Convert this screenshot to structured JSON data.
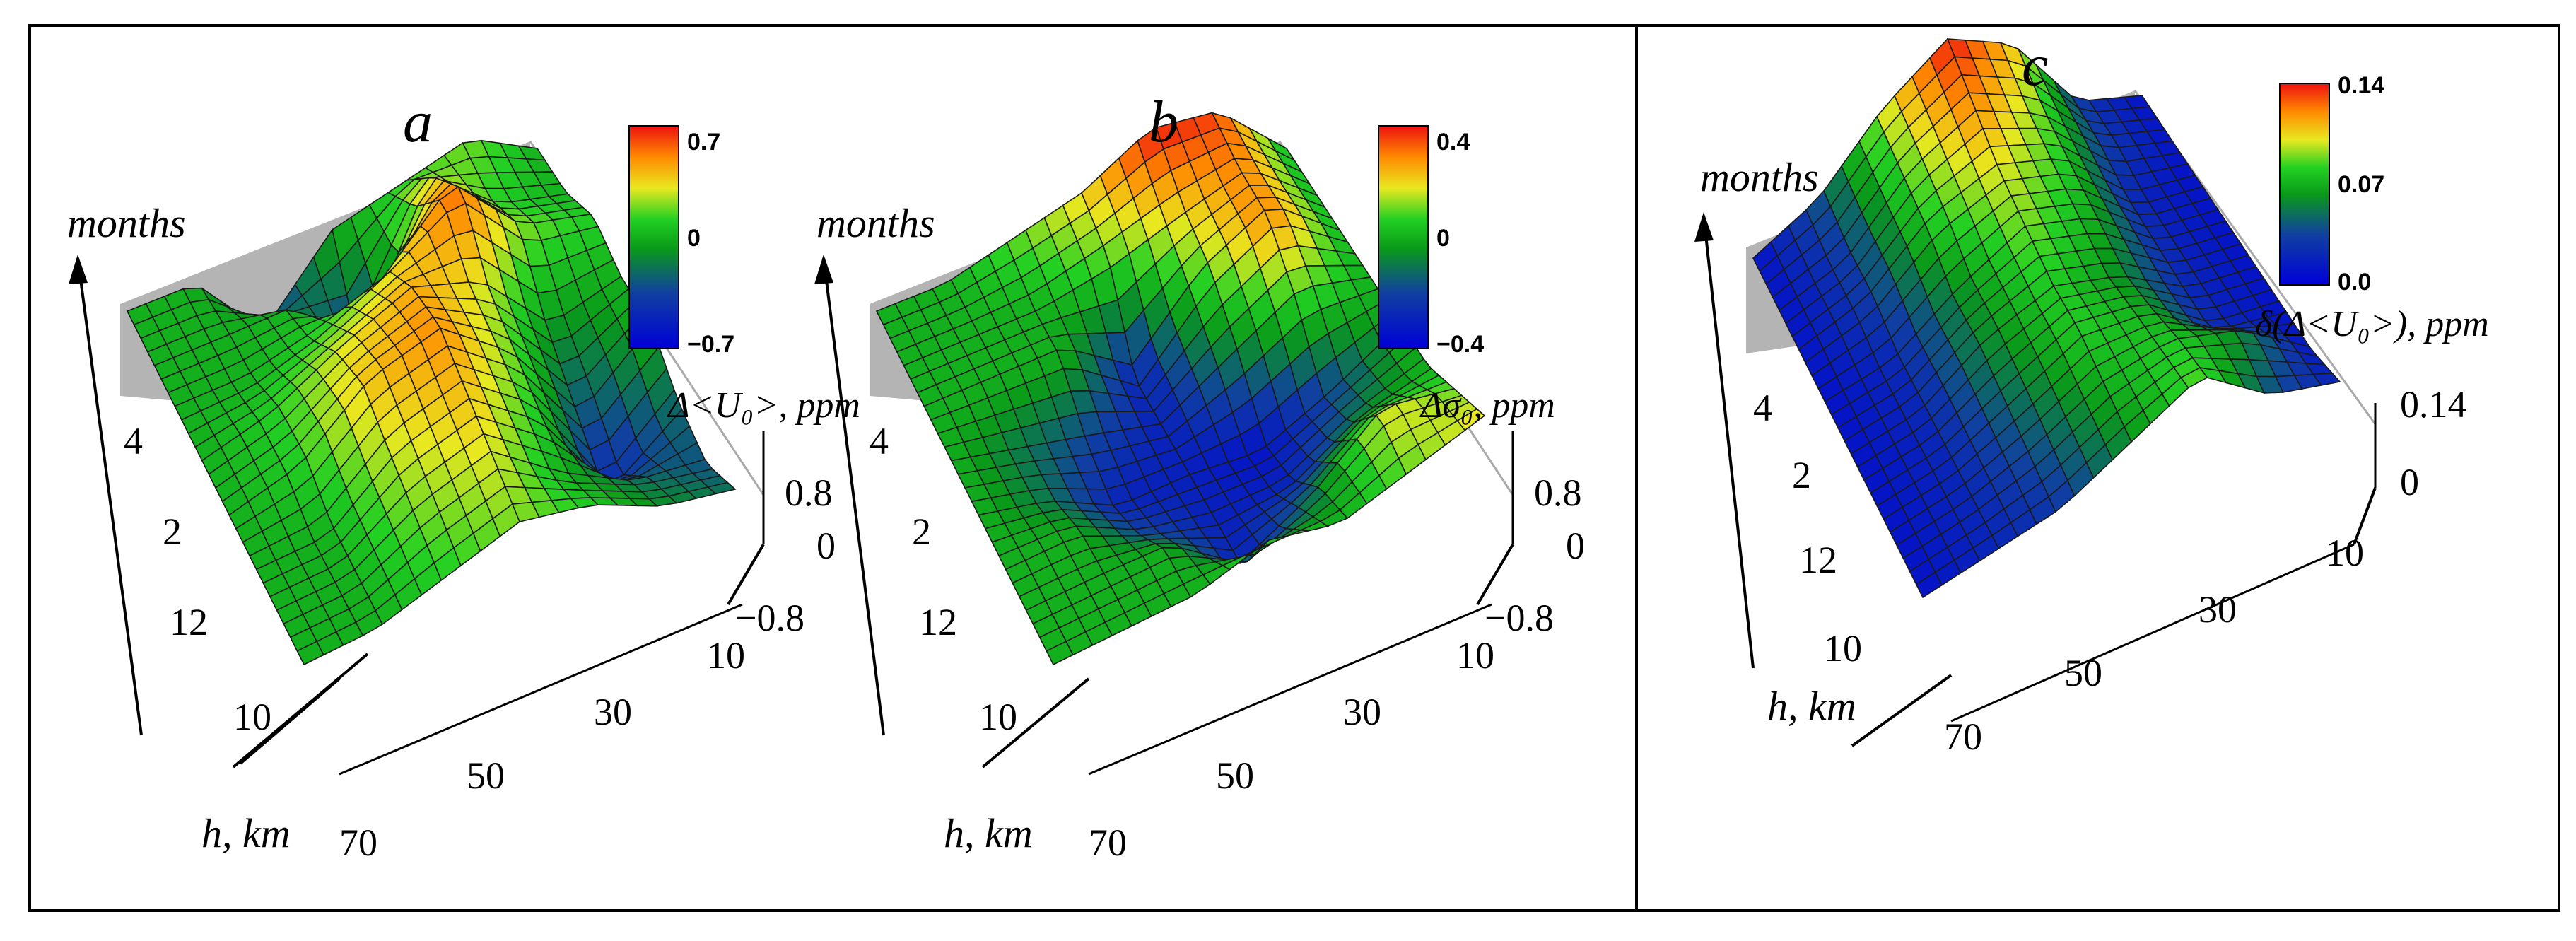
{
  "chart_data": [
    {
      "type": "surface",
      "panel": "a",
      "title": "a",
      "xlabel": "h, km",
      "ylabel": "months",
      "zlabel": "Δ<U₀>, ppm",
      "x_ticks": [
        "10",
        "30",
        "50",
        "70"
      ],
      "y_ticks": [
        "4",
        "2",
        "12",
        "10"
      ],
      "z_ticks": [
        "0.8",
        "0",
        "−0.8"
      ],
      "zlim": [
        -0.8,
        0.8
      ],
      "colorbar": {
        "ticks": [
          "0.7",
          "0",
          "−0.7"
        ],
        "range": [
          -0.7,
          0.7
        ]
      },
      "heights_km": [
        10,
        20,
        30,
        40,
        50,
        60,
        70
      ],
      "month_rows": [
        "10",
        "11",
        "12",
        "1",
        "2",
        "3",
        "4",
        "5"
      ],
      "values": [
        [
          -0.2,
          -0.1,
          0.1,
          0.2,
          0.1,
          0.0,
          0.0
        ],
        [
          -0.3,
          -0.2,
          0.0,
          0.3,
          0.2,
          0.0,
          0.0
        ],
        [
          -0.2,
          -0.5,
          0.1,
          0.4,
          0.3,
          0.0,
          0.0
        ],
        [
          0.0,
          -0.3,
          0.2,
          0.5,
          0.4,
          0.1,
          0.0
        ],
        [
          0.0,
          -0.1,
          0.3,
          0.45,
          0.3,
          0.1,
          0.0
        ],
        [
          0.1,
          0.2,
          0.6,
          0.3,
          0.1,
          0.0,
          0.0
        ],
        [
          0.0,
          0.1,
          0.4,
          -0.4,
          0.0,
          0.0,
          0.0
        ],
        [
          0.0,
          0.2,
          0.1,
          0.0,
          -0.4,
          0.0,
          0.0
        ]
      ]
    },
    {
      "type": "surface",
      "panel": "b",
      "title": "b",
      "xlabel": "h, km",
      "ylabel": "months",
      "zlabel": "Δσ₀, ppm",
      "x_ticks": [
        "10",
        "30",
        "50",
        "70"
      ],
      "y_ticks": [
        "4",
        "2",
        "12",
        "10"
      ],
      "z_ticks": [
        "0.8",
        "0",
        "−0.8"
      ],
      "zlim": [
        -0.8,
        0.8
      ],
      "colorbar": {
        "ticks": [
          "0.4",
          "0",
          "−0.4"
        ],
        "range": [
          -0.4,
          0.4
        ]
      },
      "heights_km": [
        10,
        20,
        30,
        40,
        50,
        60,
        70
      ],
      "month_rows": [
        "10",
        "11",
        "12",
        "1",
        "2",
        "3",
        "4",
        "5"
      ],
      "values": [
        [
          0.2,
          0.1,
          0.0,
          0.1,
          0.0,
          0.0,
          0.0
        ],
        [
          0.1,
          0.2,
          -0.1,
          -0.3,
          0.0,
          0.0,
          0.0
        ],
        [
          0.0,
          -0.1,
          -0.3,
          -0.3,
          -0.2,
          0.0,
          0.0
        ],
        [
          0.0,
          -0.2,
          -0.35,
          -0.3,
          -0.3,
          -0.1,
          0.0
        ],
        [
          0.0,
          0.1,
          -0.1,
          -0.3,
          -0.2,
          -0.1,
          0.0
        ],
        [
          0.0,
          0.3,
          0.1,
          -0.3,
          0.0,
          0.0,
          0.0
        ],
        [
          0.0,
          0.3,
          0.2,
          0.1,
          0.0,
          0.0,
          0.0
        ],
        [
          0.0,
          0.35,
          0.4,
          0.2,
          0.1,
          0.0,
          0.0
        ]
      ]
    },
    {
      "type": "surface",
      "panel": "c",
      "title": "c",
      "xlabel": "h, km",
      "ylabel": "months",
      "zlabel": "δ(Δ<U₀>), ppm",
      "x_ticks": [
        "10",
        "30",
        "50",
        "70"
      ],
      "y_ticks": [
        "4",
        "2",
        "12",
        "10"
      ],
      "z_ticks": [
        "0.14",
        "0"
      ],
      "zlim": [
        0,
        0.14
      ],
      "colorbar": {
        "ticks": [
          "0.14",
          "0.07",
          "0.0"
        ],
        "range": [
          0,
          0.14
        ]
      },
      "heights_km": [
        10,
        20,
        30,
        40,
        50,
        60,
        70
      ],
      "month_rows": [
        "10",
        "11",
        "12",
        "1",
        "2",
        "3",
        "4",
        "5"
      ],
      "values": [
        [
          0.02,
          0.04,
          0.09,
          0.06,
          0.03,
          0.02,
          0.01
        ],
        [
          0.01,
          0.06,
          0.08,
          0.07,
          0.04,
          0.02,
          0.01
        ],
        [
          0.01,
          0.02,
          0.07,
          0.08,
          0.05,
          0.02,
          0.01
        ],
        [
          0.01,
          0.02,
          0.06,
          0.08,
          0.06,
          0.02,
          0.01
        ],
        [
          0.01,
          0.02,
          0.07,
          0.09,
          0.06,
          0.02,
          0.01
        ],
        [
          0.01,
          0.02,
          0.08,
          0.1,
          0.08,
          0.03,
          0.01
        ],
        [
          0.01,
          0.03,
          0.09,
          0.12,
          0.09,
          0.03,
          0.01
        ],
        [
          0.01,
          0.03,
          0.11,
          0.14,
          0.1,
          0.04,
          0.01
        ]
      ]
    }
  ]
}
